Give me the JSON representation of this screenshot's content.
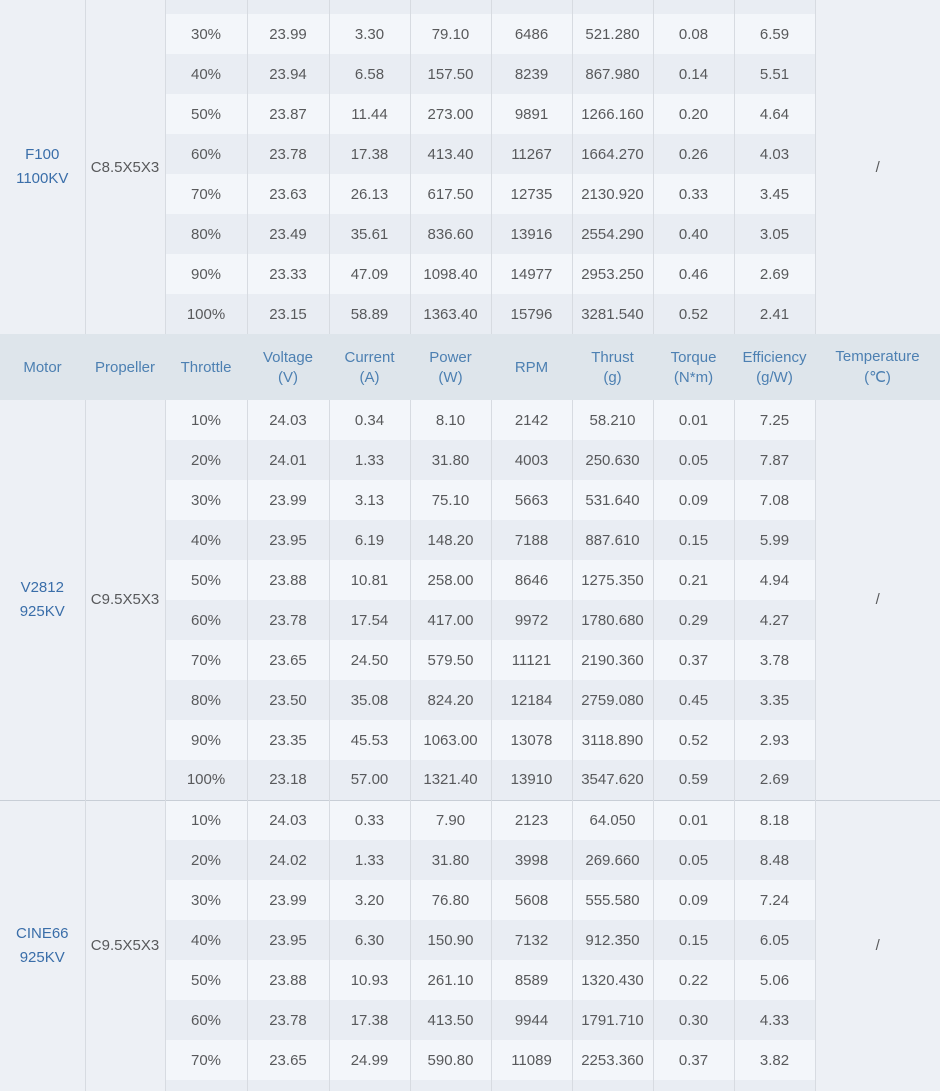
{
  "colors": {
    "page_bg": "#f2f5f9",
    "row_light": "#f3f6fa",
    "row_dark": "#e9edf3",
    "side_col_bg": "#edf0f5",
    "header_bg": "#dee5eb",
    "header_text": "#4d80b2",
    "motor_text": "#3a6ea9",
    "cell_text": "#58595b",
    "col_border": "#d7dbe1",
    "section_divider": "#c8ced6"
  },
  "table": {
    "header": {
      "columns": [
        {
          "label": "Motor",
          "unit": ""
        },
        {
          "label": "Propeller",
          "unit": ""
        },
        {
          "label": "Throttle",
          "unit": ""
        },
        {
          "label": "Voltage",
          "unit": "(V)"
        },
        {
          "label": "Current",
          "unit": "(A)"
        },
        {
          "label": "Power",
          "unit": "(W)"
        },
        {
          "label": "RPM",
          "unit": ""
        },
        {
          "label": "Thrust",
          "unit": "(g)"
        },
        {
          "label": "Torque",
          "unit": "(N*m)"
        },
        {
          "label": "Efficiency",
          "unit": "(g/W)"
        },
        {
          "label": "Temperature",
          "unit": "(℃)"
        }
      ]
    },
    "sections": [
      {
        "motor": {
          "line1": "F100",
          "line2": "1100KV"
        },
        "propeller": "C8.5X5X3",
        "temperature": "/",
        "partial_row_top": true,
        "rows": [
          {
            "throttle": "30%",
            "voltage": "23.99",
            "current": "3.30",
            "power": "79.10",
            "rpm": "6486",
            "thrust": "521.280",
            "torque": "0.08",
            "efficiency": "6.59"
          },
          {
            "throttle": "40%",
            "voltage": "23.94",
            "current": "6.58",
            "power": "157.50",
            "rpm": "8239",
            "thrust": "867.980",
            "torque": "0.14",
            "efficiency": "5.51"
          },
          {
            "throttle": "50%",
            "voltage": "23.87",
            "current": "11.44",
            "power": "273.00",
            "rpm": "9891",
            "thrust": "1266.160",
            "torque": "0.20",
            "efficiency": "4.64"
          },
          {
            "throttle": "60%",
            "voltage": "23.78",
            "current": "17.38",
            "power": "413.40",
            "rpm": "11267",
            "thrust": "1664.270",
            "torque": "0.26",
            "efficiency": "4.03"
          },
          {
            "throttle": "70%",
            "voltage": "23.63",
            "current": "26.13",
            "power": "617.50",
            "rpm": "12735",
            "thrust": "2130.920",
            "torque": "0.33",
            "efficiency": "3.45"
          },
          {
            "throttle": "80%",
            "voltage": "23.49",
            "current": "35.61",
            "power": "836.60",
            "rpm": "13916",
            "thrust": "2554.290",
            "torque": "0.40",
            "efficiency": "3.05"
          },
          {
            "throttle": "90%",
            "voltage": "23.33",
            "current": "47.09",
            "power": "1098.40",
            "rpm": "14977",
            "thrust": "2953.250",
            "torque": "0.46",
            "efficiency": "2.69"
          },
          {
            "throttle": "100%",
            "voltage": "23.15",
            "current": "58.89",
            "power": "1363.40",
            "rpm": "15796",
            "thrust": "3281.540",
            "torque": "0.52",
            "efficiency": "2.41"
          }
        ]
      },
      {
        "motor": {
          "line1": "V2812",
          "line2": "925KV"
        },
        "propeller": "C9.5X5X3",
        "temperature": "/",
        "rows": [
          {
            "throttle": "10%",
            "voltage": "24.03",
            "current": "0.34",
            "power": "8.10",
            "rpm": "2142",
            "thrust": "58.210",
            "torque": "0.01",
            "efficiency": "7.25"
          },
          {
            "throttle": "20%",
            "voltage": "24.01",
            "current": "1.33",
            "power": "31.80",
            "rpm": "4003",
            "thrust": "250.630",
            "torque": "0.05",
            "efficiency": "7.87"
          },
          {
            "throttle": "30%",
            "voltage": "23.99",
            "current": "3.13",
            "power": "75.10",
            "rpm": "5663",
            "thrust": "531.640",
            "torque": "0.09",
            "efficiency": "7.08"
          },
          {
            "throttle": "40%",
            "voltage": "23.95",
            "current": "6.19",
            "power": "148.20",
            "rpm": "7188",
            "thrust": "887.610",
            "torque": "0.15",
            "efficiency": "5.99"
          },
          {
            "throttle": "50%",
            "voltage": "23.88",
            "current": "10.81",
            "power": "258.00",
            "rpm": "8646",
            "thrust": "1275.350",
            "torque": "0.21",
            "efficiency": "4.94"
          },
          {
            "throttle": "60%",
            "voltage": "23.78",
            "current": "17.54",
            "power": "417.00",
            "rpm": "9972",
            "thrust": "1780.680",
            "torque": "0.29",
            "efficiency": "4.27"
          },
          {
            "throttle": "70%",
            "voltage": "23.65",
            "current": "24.50",
            "power": "579.50",
            "rpm": "11121",
            "thrust": "2190.360",
            "torque": "0.37",
            "efficiency": "3.78"
          },
          {
            "throttle": "80%",
            "voltage": "23.50",
            "current": "35.08",
            "power": "824.20",
            "rpm": "12184",
            "thrust": "2759.080",
            "torque": "0.45",
            "efficiency": "3.35"
          },
          {
            "throttle": "90%",
            "voltage": "23.35",
            "current": "45.53",
            "power": "1063.00",
            "rpm": "13078",
            "thrust": "3118.890",
            "torque": "0.52",
            "efficiency": "2.93"
          },
          {
            "throttle": "100%",
            "voltage": "23.18",
            "current": "57.00",
            "power": "1321.40",
            "rpm": "13910",
            "thrust": "3547.620",
            "torque": "0.59",
            "efficiency": "2.69"
          }
        ]
      },
      {
        "motor": {
          "line1": "CINE66",
          "line2": "925KV"
        },
        "propeller": "C9.5X5X3",
        "temperature": "/",
        "partial_row_bottom": true,
        "divider_top": true,
        "rows": [
          {
            "throttle": "10%",
            "voltage": "24.03",
            "current": "0.33",
            "power": "7.90",
            "rpm": "2123",
            "thrust": "64.050",
            "torque": "0.01",
            "efficiency": "8.18"
          },
          {
            "throttle": "20%",
            "voltage": "24.02",
            "current": "1.33",
            "power": "31.80",
            "rpm": "3998",
            "thrust": "269.660",
            "torque": "0.05",
            "efficiency": "8.48"
          },
          {
            "throttle": "30%",
            "voltage": "23.99",
            "current": "3.20",
            "power": "76.80",
            "rpm": "5608",
            "thrust": "555.580",
            "torque": "0.09",
            "efficiency": "7.24"
          },
          {
            "throttle": "40%",
            "voltage": "23.95",
            "current": "6.30",
            "power": "150.90",
            "rpm": "7132",
            "thrust": "912.350",
            "torque": "0.15",
            "efficiency": "6.05"
          },
          {
            "throttle": "50%",
            "voltage": "23.88",
            "current": "10.93",
            "power": "261.10",
            "rpm": "8589",
            "thrust": "1320.430",
            "torque": "0.22",
            "efficiency": "5.06"
          },
          {
            "throttle": "60%",
            "voltage": "23.78",
            "current": "17.38",
            "power": "413.50",
            "rpm": "9944",
            "thrust": "1791.710",
            "torque": "0.30",
            "efficiency": "4.33"
          },
          {
            "throttle": "70%",
            "voltage": "23.65",
            "current": "24.99",
            "power": "590.80",
            "rpm": "11089",
            "thrust": "2253.360",
            "torque": "0.37",
            "efficiency": "3.82"
          }
        ]
      }
    ]
  }
}
